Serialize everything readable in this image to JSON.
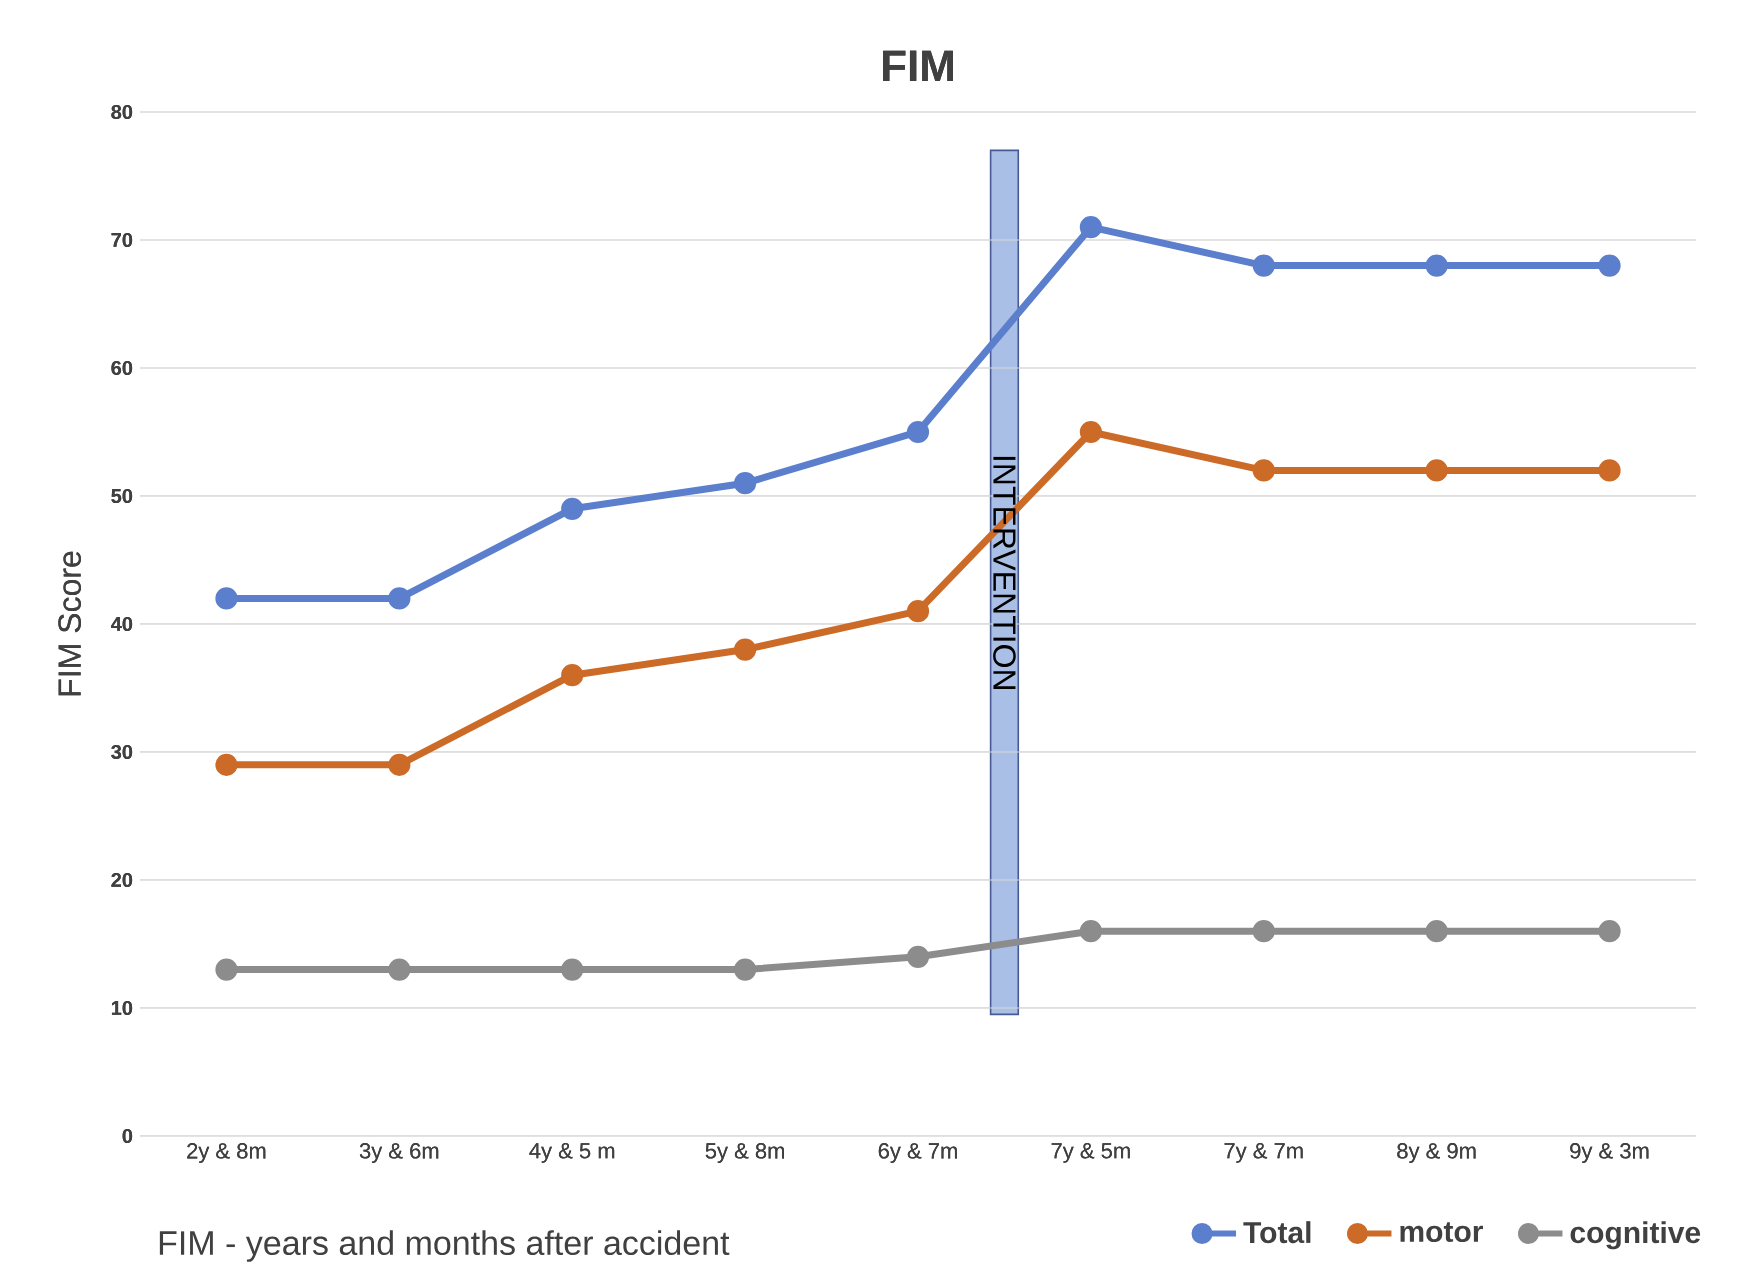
{
  "chart_data": {
    "type": "line",
    "title": "FIM",
    "xlabel": "FIM - years and months after accident",
    "ylabel": "FIM Score",
    "categories": [
      "2y  & 8m",
      "3y & 6m",
      "4y & 5 m",
      "5y & 8m",
      "6y & 7m",
      "7y & 5m",
      "7y & 7m",
      "8y & 9m",
      "9y & 3m"
    ],
    "series": [
      {
        "name": "Total",
        "color": "#5b7fcc",
        "values": [
          42,
          42,
          49,
          51,
          55,
          71,
          68,
          68,
          68
        ]
      },
      {
        "name": "motor",
        "color": "#cc6b27",
        "values": [
          29,
          29,
          36,
          38,
          41,
          55,
          52,
          52,
          52
        ]
      },
      {
        "name": "cognitive",
        "color": "#8c8c8c",
        "values": [
          13,
          13,
          13,
          13,
          14,
          16,
          16,
          16,
          16
        ]
      }
    ],
    "ylim": [
      0,
      80
    ],
    "yticks": [
      0,
      10,
      20,
      30,
      40,
      50,
      60,
      70,
      80
    ],
    "grid": "y",
    "legend": "bottom right",
    "marker": "circle",
    "line_style": "solid",
    "annotations": [
      "INTERVENTION"
    ]
  }
}
